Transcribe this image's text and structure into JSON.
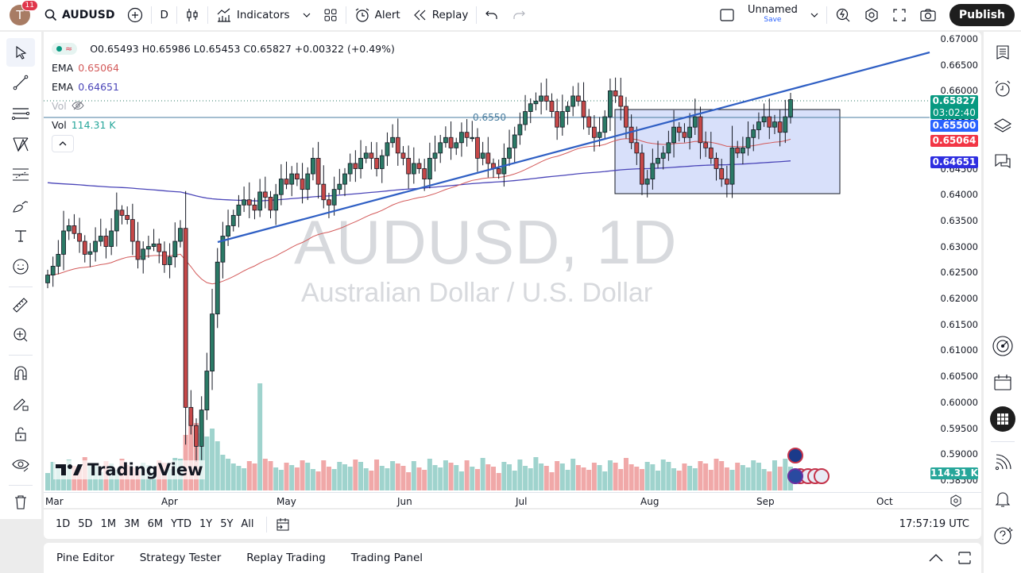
{
  "topbar": {
    "avatar_letter": "T",
    "notification_count": "11",
    "symbol": "AUDUSD",
    "interval": "D",
    "indicators_label": "Indicators",
    "alert_label": "Alert",
    "replay_label": "Replay",
    "layout_name": "Unnamed",
    "save_label": "Save",
    "publish_label": "Publish"
  },
  "legend": {
    "ohlc": "O0.65493 H0.65986 L0.65453 C0.65827 +0.00322 (+0.49%)",
    "ema1_label": "EMA",
    "ema1_value": "0.65064",
    "ema2_label": "EMA",
    "ema2_value": "0.64651",
    "vol_hidden_label": "Vol",
    "vol_label": "Vol",
    "vol_value": "114.31 K"
  },
  "watermark": {
    "title": "AUDUSD, 1D",
    "subtitle": "Australian Dollar / U.S. Dollar"
  },
  "branding": {
    "logo_text": "TradingView"
  },
  "yaxis": {
    "labels": [
      "0.67000",
      "0.66500",
      "0.66000",
      "0.65500",
      "0.65000",
      "0.64500",
      "0.64000",
      "0.63500",
      "0.63000",
      "0.62500",
      "0.62000",
      "0.61500",
      "0.61000",
      "0.60500",
      "0.60000",
      "0.59500",
      "0.59000",
      "0.58500"
    ],
    "price_tags": [
      {
        "value": "0.65827",
        "sub": "03:02:40",
        "color": "#089981"
      },
      {
        "value": "0.65500",
        "color": "#2962ff"
      },
      {
        "value": "0.65064",
        "color": "#f23645"
      },
      {
        "value": "0.64651",
        "color": "#2e2ee0"
      }
    ],
    "volume_tag": {
      "value": "114.31 K",
      "color": "#26a69a"
    }
  },
  "xaxis": {
    "labels": [
      "Mar",
      "Apr",
      "May",
      "Jun",
      "Jul",
      "Aug",
      "Sep",
      "Oct"
    ]
  },
  "horizontal_line_label": "0.6550",
  "range_buttons": [
    "1D",
    "5D",
    "1M",
    "3M",
    "6M",
    "YTD",
    "1Y",
    "5Y",
    "All"
  ],
  "clock": "17:57:19 UTC",
  "bottom_tabs": [
    "Pine Editor",
    "Strategy Tester",
    "Replay Trading",
    "Trading Panel"
  ],
  "colors": {
    "up": "#2b7a66",
    "down": "#c64848",
    "vol_up": "#9fd3cd",
    "vol_down": "#f0a8a8",
    "ema_fast": "#d35a5a",
    "ema_slow": "#4a45b8",
    "trendline": "#2f5fc4",
    "range_box": "#d4ddfa"
  },
  "chart_data": {
    "type": "candlestick",
    "title": "AUDUSD, 1D",
    "subtitle": "Australian Dollar / U.S. Dollar",
    "ylim": [
      0.585,
      0.67
    ],
    "months": [
      "Mar",
      "Apr",
      "May",
      "Jun",
      "Jul",
      "Aug",
      "Sep",
      "Oct"
    ],
    "last": {
      "open": 0.65493,
      "high": 0.65986,
      "low": 0.65453,
      "close": 0.65827,
      "change": 0.00322,
      "change_pct": 0.49,
      "volume": "114.31K"
    },
    "ema_fast_last": 0.65064,
    "ema_slow_last": 0.64651,
    "horizontal_level": 0.655,
    "closes": [
      0.6245,
      0.6262,
      0.6285,
      0.633,
      0.634,
      0.6325,
      0.631,
      0.6285,
      0.629,
      0.631,
      0.632,
      0.63,
      0.633,
      0.637,
      0.636,
      0.6352,
      0.631,
      0.6275,
      0.6295,
      0.63,
      0.6305,
      0.629,
      0.6265,
      0.628,
      0.631,
      0.6335,
      0.599,
      0.5955,
      0.5915,
      0.5985,
      0.606,
      0.617,
      0.627,
      0.632,
      0.634,
      0.636,
      0.638,
      0.639,
      0.638,
      0.637,
      0.6405,
      0.6395,
      0.637,
      0.64,
      0.643,
      0.642,
      0.644,
      0.643,
      0.641,
      0.644,
      0.647,
      0.642,
      0.639,
      0.638,
      0.641,
      0.642,
      0.644,
      0.646,
      0.645,
      0.647,
      0.648,
      0.647,
      0.645,
      0.6475,
      0.65,
      0.651,
      0.648,
      0.647,
      0.644,
      0.646,
      0.645,
      0.643,
      0.647,
      0.648,
      0.65,
      0.651,
      0.649,
      0.65,
      0.652,
      0.651,
      0.651,
      0.647,
      0.648,
      0.646,
      0.645,
      0.644,
      0.647,
      0.649,
      0.6515,
      0.6535,
      0.656,
      0.6575,
      0.658,
      0.659,
      0.658,
      0.656,
      0.653,
      0.656,
      0.657,
      0.659,
      0.658,
      0.655,
      0.653,
      0.651,
      0.652,
      0.655,
      0.66,
      0.659,
      0.657,
      0.653,
      0.65,
      0.648,
      0.642,
      0.643,
      0.646,
      0.647,
      0.648,
      0.65,
      0.653,
      0.652,
      0.651,
      0.653,
      0.655,
      0.65,
      0.649,
      0.647,
      0.645,
      0.643,
      0.642,
      0.649,
      0.648,
      0.649,
      0.651,
      0.6525,
      0.654,
      0.655,
      0.653,
      0.654,
      0.652,
      0.655,
      0.6583
    ]
  }
}
